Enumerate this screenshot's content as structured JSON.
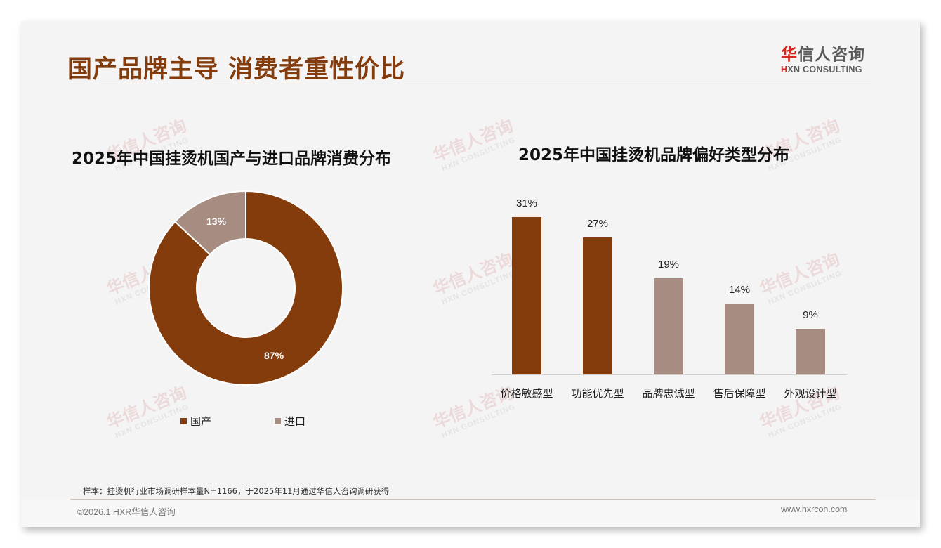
{
  "slide": {
    "title": "国产品牌主导 消费者重性价比",
    "logo": {
      "cn_red": "华",
      "cn_rest": "信人咨询",
      "en_red": "H",
      "en_rest": "XN CONSULTING"
    },
    "footnote": "样本：挂烫机行业市场调研样本量N=1166，于2025年11月通过华信人咨询调研获得",
    "copyright": "©2026.1 HXR华信人咨询",
    "website": "www.hxrcon.com",
    "watermark": {
      "cn": "华信人咨询",
      "en": "HXN CONSULTING"
    }
  },
  "colors": {
    "primary": "#843c0c",
    "secondary": "#a78c82",
    "title": "#843c0c"
  },
  "chart_data": [
    {
      "type": "pie",
      "subtype": "donut",
      "title": "2025年中国挂烫机国产与进口品牌消费分布",
      "categories": [
        "国产",
        "进口"
      ],
      "values": [
        87,
        13
      ],
      "labels": [
        "87%",
        "13%"
      ],
      "colors": [
        "#843c0c",
        "#a78c82"
      ],
      "legend_position": "bottom"
    },
    {
      "type": "bar",
      "title": "2025年中国挂烫机品牌偏好类型分布",
      "categories": [
        "价格敏感型",
        "功能优先型",
        "品牌忠诚型",
        "售后保障型",
        "外观设计型"
      ],
      "values": [
        31,
        27,
        19,
        14,
        9
      ],
      "labels": [
        "31%",
        "27%",
        "19%",
        "14%",
        "9%"
      ],
      "colors": [
        "#843c0c",
        "#843c0c",
        "#a78c82",
        "#a78c82",
        "#a78c82"
      ],
      "xlabel": "",
      "ylabel": "",
      "grid": false,
      "unit": "%"
    }
  ]
}
